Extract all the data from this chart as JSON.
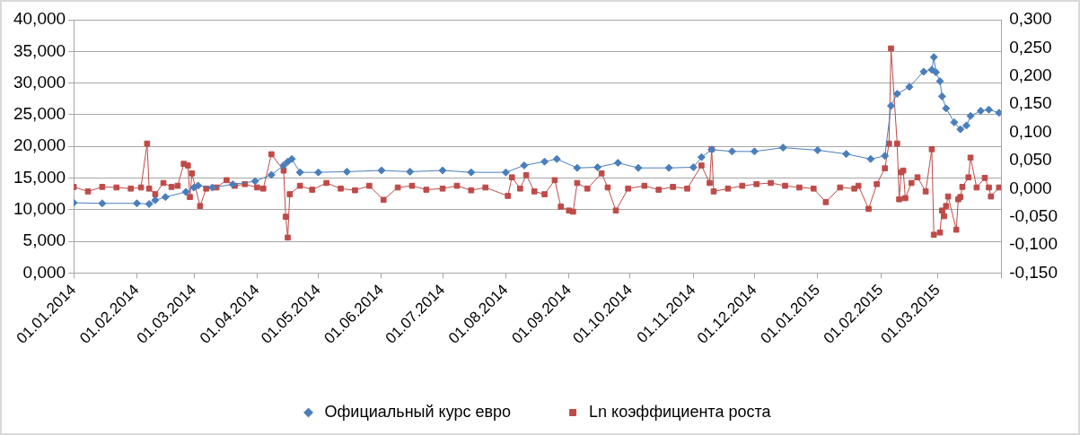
{
  "chart_data": {
    "type": "line",
    "xlim": [
      "2014-01-01",
      "2015-04-01"
    ],
    "xticks": [
      {
        "value": "2014-01-01",
        "label": "01.01.2014"
      },
      {
        "value": "2014-02-01",
        "label": "01.02.2014"
      },
      {
        "value": "2014-03-01",
        "label": "01.03.2014"
      },
      {
        "value": "2014-04-01",
        "label": "01.04.2014"
      },
      {
        "value": "2014-05-01",
        "label": "01.05.2014"
      },
      {
        "value": "2014-06-01",
        "label": "01.06.2014"
      },
      {
        "value": "2014-07-01",
        "label": "01.07.2014"
      },
      {
        "value": "2014-08-01",
        "label": "01.08.2014"
      },
      {
        "value": "2014-09-01",
        "label": "01.09.2014"
      },
      {
        "value": "2014-10-01",
        "label": "01.10.2014"
      },
      {
        "value": "2014-11-01",
        "label": "01.11.2014"
      },
      {
        "value": "2014-12-01",
        "label": "01.12.2014"
      },
      {
        "value": "2015-01-01",
        "label": "01.01.2015"
      },
      {
        "value": "2015-02-01",
        "label": "01.02.2015"
      },
      {
        "value": "2015-03-01",
        "label": "01.03.2015"
      },
      {
        "value": "2015-04-01",
        "label": null
      }
    ],
    "ylim": [
      0,
      40
    ],
    "yticks": [
      {
        "value": 0,
        "label": "0,000"
      },
      {
        "value": 5,
        "label": "5,000"
      },
      {
        "value": 10,
        "label": "10,000"
      },
      {
        "value": 15,
        "label": "15,000"
      },
      {
        "value": 20,
        "label": "20,000"
      },
      {
        "value": 25,
        "label": "25,000"
      },
      {
        "value": 30,
        "label": "30,000"
      },
      {
        "value": 35,
        "label": "35,000"
      },
      {
        "value": 40,
        "label": "40,000"
      }
    ],
    "y2lim": [
      -0.15,
      0.3
    ],
    "y2ticks": [
      {
        "value": -0.15,
        "label": "-0,150"
      },
      {
        "value": -0.1,
        "label": "-0,100"
      },
      {
        "value": -0.05,
        "label": "-0,050"
      },
      {
        "value": 0,
        "label": "0,000"
      },
      {
        "value": 0.05,
        "label": "0,050"
      },
      {
        "value": 0.1,
        "label": "0,100"
      },
      {
        "value": 0.15,
        "label": "0,150"
      },
      {
        "value": 0.2,
        "label": "0,200"
      },
      {
        "value": 0.25,
        "label": "0,250"
      },
      {
        "value": 0.3,
        "label": "0,300"
      }
    ],
    "grid": "y",
    "legend": "bottom",
    "series": [
      {
        "name": "Официальный курс евро",
        "color": "#4a7ebb",
        "marker": "diamond",
        "x": [
          "2014-01-01",
          "2014-01-15",
          "2014-02-01",
          "2014-02-07",
          "2014-02-10",
          "2014-02-15",
          "2014-02-25",
          "2014-03-01",
          "2014-03-03",
          "2014-03-10",
          "2014-03-20",
          "2014-03-31",
          "2014-04-08",
          "2014-04-14",
          "2014-04-16",
          "2014-04-18",
          "2014-04-22",
          "2014-05-01",
          "2014-05-15",
          "2014-06-01",
          "2014-06-15",
          "2014-07-01",
          "2014-07-15",
          "2014-08-01",
          "2014-08-10",
          "2014-08-20",
          "2014-08-26",
          "2014-09-05",
          "2014-09-15",
          "2014-09-25",
          "2014-10-05",
          "2014-10-20",
          "2014-11-01",
          "2014-11-05",
          "2014-11-10",
          "2014-11-20",
          "2014-12-01",
          "2014-12-15",
          "2015-01-01",
          "2015-01-15",
          "2015-01-27",
          "2015-02-03",
          "2015-02-06",
          "2015-02-09",
          "2015-02-15",
          "2015-02-22",
          "2015-02-26",
          "2015-02-27",
          "2015-02-28",
          "2015-03-02",
          "2015-03-03",
          "2015-03-05",
          "2015-03-09",
          "2015-03-12",
          "2015-03-15",
          "2015-03-17",
          "2015-03-22",
          "2015-03-26",
          "2015-03-31"
        ],
        "values": [
          11.1,
          11.0,
          11.0,
          10.9,
          11.5,
          12.0,
          12.8,
          13.5,
          13.8,
          13.5,
          14.0,
          14.5,
          15.5,
          17.0,
          17.6,
          18.0,
          15.9,
          15.9,
          16.0,
          16.2,
          16.0,
          16.2,
          15.9,
          15.9,
          17.0,
          17.6,
          18.0,
          16.6,
          16.7,
          17.4,
          16.6,
          16.6,
          16.7,
          18.3,
          19.5,
          19.2,
          19.2,
          19.8,
          19.4,
          18.8,
          18.0,
          18.5,
          26.4,
          28.3,
          29.4,
          31.8,
          32.1,
          34.1,
          31.7,
          30.3,
          27.9,
          26.0,
          23.8,
          22.7,
          23.3,
          24.8,
          25.6,
          25.8,
          25.3
        ]
      },
      {
        "name": "Ln коэффициента роста",
        "color": "#be4b48",
        "marker": "square",
        "axis": "y2",
        "x": [
          "2014-01-01",
          "2014-01-08",
          "2014-01-15",
          "2014-01-22",
          "2014-01-29",
          "2014-02-03",
          "2014-02-06",
          "2014-02-07",
          "2014-02-10",
          "2014-02-14",
          "2014-02-18",
          "2014-02-21",
          "2014-02-24",
          "2014-02-26",
          "2014-02-27",
          "2014-02-28",
          "2014-03-04",
          "2014-03-07",
          "2014-03-12",
          "2014-03-17",
          "2014-03-21",
          "2014-03-26",
          "2014-04-01",
          "2014-04-04",
          "2014-04-08",
          "2014-04-14",
          "2014-04-15",
          "2014-04-16",
          "2014-04-17",
          "2014-04-22",
          "2014-04-28",
          "2014-05-05",
          "2014-05-12",
          "2014-05-19",
          "2014-05-26",
          "2014-06-02",
          "2014-06-09",
          "2014-06-16",
          "2014-06-23",
          "2014-07-01",
          "2014-07-08",
          "2014-07-15",
          "2014-07-22",
          "2014-08-02",
          "2014-08-04",
          "2014-08-08",
          "2014-08-11",
          "2014-08-15",
          "2014-08-20",
          "2014-08-25",
          "2014-08-28",
          "2014-09-01",
          "2014-09-03",
          "2014-09-05",
          "2014-09-10",
          "2014-09-17",
          "2014-09-20",
          "2014-09-24",
          "2014-09-30",
          "2014-10-08",
          "2014-10-15",
          "2014-10-22",
          "2014-10-29",
          "2014-11-05",
          "2014-11-09",
          "2014-11-10",
          "2014-11-11",
          "2014-11-18",
          "2014-11-25",
          "2014-12-02",
          "2014-12-09",
          "2014-12-16",
          "2014-12-23",
          "2014-12-30",
          "2015-01-05",
          "2015-01-12",
          "2015-01-19",
          "2015-01-21",
          "2015-01-26",
          "2015-01-30",
          "2015-02-03",
          "2015-02-05",
          "2015-02-06",
          "2015-02-09",
          "2015-02-10",
          "2015-02-11",
          "2015-02-12",
          "2015-02-13",
          "2015-02-16",
          "2015-02-19",
          "2015-02-23",
          "2015-02-26",
          "2015-02-27",
          "2015-03-02",
          "2015-03-03",
          "2015-03-04",
          "2015-03-05",
          "2015-03-06",
          "2015-03-10",
          "2015-03-11",
          "2015-03-12",
          "2015-03-13",
          "2015-03-16",
          "2015-03-17",
          "2015-03-20",
          "2015-03-24",
          "2015-03-26",
          "2015-03-27",
          "2015-03-31"
        ],
        "values": [
          0.003,
          -0.005,
          0.003,
          0.002,
          0.0,
          0.002,
          0.08,
          0.0,
          -0.01,
          0.01,
          0.003,
          0.005,
          0.044,
          0.041,
          -0.015,
          0.027,
          -0.031,
          0.0,
          0.002,
          0.015,
          0.005,
          0.008,
          0.002,
          0.0,
          0.061,
          0.032,
          -0.05,
          -0.087,
          -0.01,
          0.005,
          -0.002,
          0.01,
          0.0,
          -0.003,
          0.005,
          -0.02,
          0.002,
          0.005,
          -0.002,
          0.0,
          0.005,
          -0.003,
          0.002,
          -0.013,
          0.02,
          0.0,
          0.024,
          -0.005,
          -0.01,
          0.015,
          -0.032,
          -0.039,
          -0.041,
          0.01,
          0.0,
          0.027,
          0.002,
          -0.039,
          0.0,
          0.005,
          -0.002,
          0.003,
          0.0,
          0.041,
          0.01,
          0.07,
          -0.005,
          0.0,
          0.005,
          0.008,
          0.01,
          0.005,
          0.002,
          0.0,
          -0.024,
          0.002,
          0.0,
          0.005,
          -0.036,
          0.008,
          0.036,
          0.08,
          0.249,
          0.08,
          -0.019,
          0.029,
          0.032,
          -0.017,
          0.01,
          0.02,
          -0.005,
          0.07,
          -0.082,
          -0.078,
          -0.039,
          -0.049,
          -0.031,
          -0.014,
          -0.073,
          -0.019,
          -0.015,
          0.003,
          0.02,
          0.055,
          0.002,
          0.019,
          0.002,
          -0.014,
          0.002
        ]
      }
    ]
  }
}
